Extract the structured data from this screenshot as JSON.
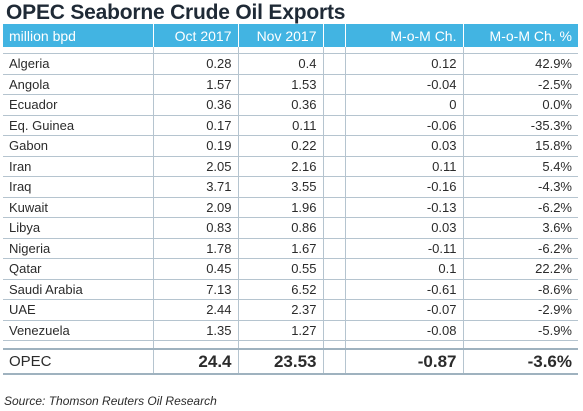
{
  "title": "OPEC Seaborne Crude Oil Exports",
  "headers": [
    "million bpd",
    "Oct 2017",
    "Nov 2017",
    "M-o-M Ch.",
    "M-o-M Ch. %"
  ],
  "rows": [
    {
      "country": "Algeria",
      "oct": "0.28",
      "nov": "0.4",
      "chg": "0.12",
      "pct": "42.9%"
    },
    {
      "country": "Angola",
      "oct": "1.57",
      "nov": "1.53",
      "chg": "-0.04",
      "pct": "-2.5%"
    },
    {
      "country": "Ecuador",
      "oct": "0.36",
      "nov": "0.36",
      "chg": "0",
      "pct": "0.0%"
    },
    {
      "country": "Eq. Guinea",
      "oct": "0.17",
      "nov": "0.11",
      "chg": "-0.06",
      "pct": "-35.3%"
    },
    {
      "country": "Gabon",
      "oct": "0.19",
      "nov": "0.22",
      "chg": "0.03",
      "pct": "15.8%"
    },
    {
      "country": "Iran",
      "oct": "2.05",
      "nov": "2.16",
      "chg": "0.11",
      "pct": "5.4%"
    },
    {
      "country": "Iraq",
      "oct": "3.71",
      "nov": "3.55",
      "chg": "-0.16",
      "pct": "-4.3%"
    },
    {
      "country": "Kuwait",
      "oct": "2.09",
      "nov": "1.96",
      "chg": "-0.13",
      "pct": "-6.2%"
    },
    {
      "country": "Libya",
      "oct": "0.83",
      "nov": "0.86",
      "chg": "0.03",
      "pct": "3.6%"
    },
    {
      "country": "Nigeria",
      "oct": "1.78",
      "nov": "1.67",
      "chg": "-0.11",
      "pct": "-6.2%"
    },
    {
      "country": "Qatar",
      "oct": "0.45",
      "nov": "0.55",
      "chg": "0.1",
      "pct": "22.2%"
    },
    {
      "country": "Saudi Arabia",
      "oct": "7.13",
      "nov": "6.52",
      "chg": "-0.61",
      "pct": "-8.6%"
    },
    {
      "country": "UAE",
      "oct": "2.44",
      "nov": "2.37",
      "chg": "-0.07",
      "pct": "-2.9%"
    },
    {
      "country": "Venezuela",
      "oct": "1.35",
      "nov": "1.27",
      "chg": "-0.08",
      "pct": "-5.9%"
    }
  ],
  "total": {
    "country": "OPEC",
    "oct": "24.4",
    "nov": "23.53",
    "chg": "-0.87",
    "pct": "-3.6%"
  },
  "source": "Source: Thomson Reuters Oil Research"
}
